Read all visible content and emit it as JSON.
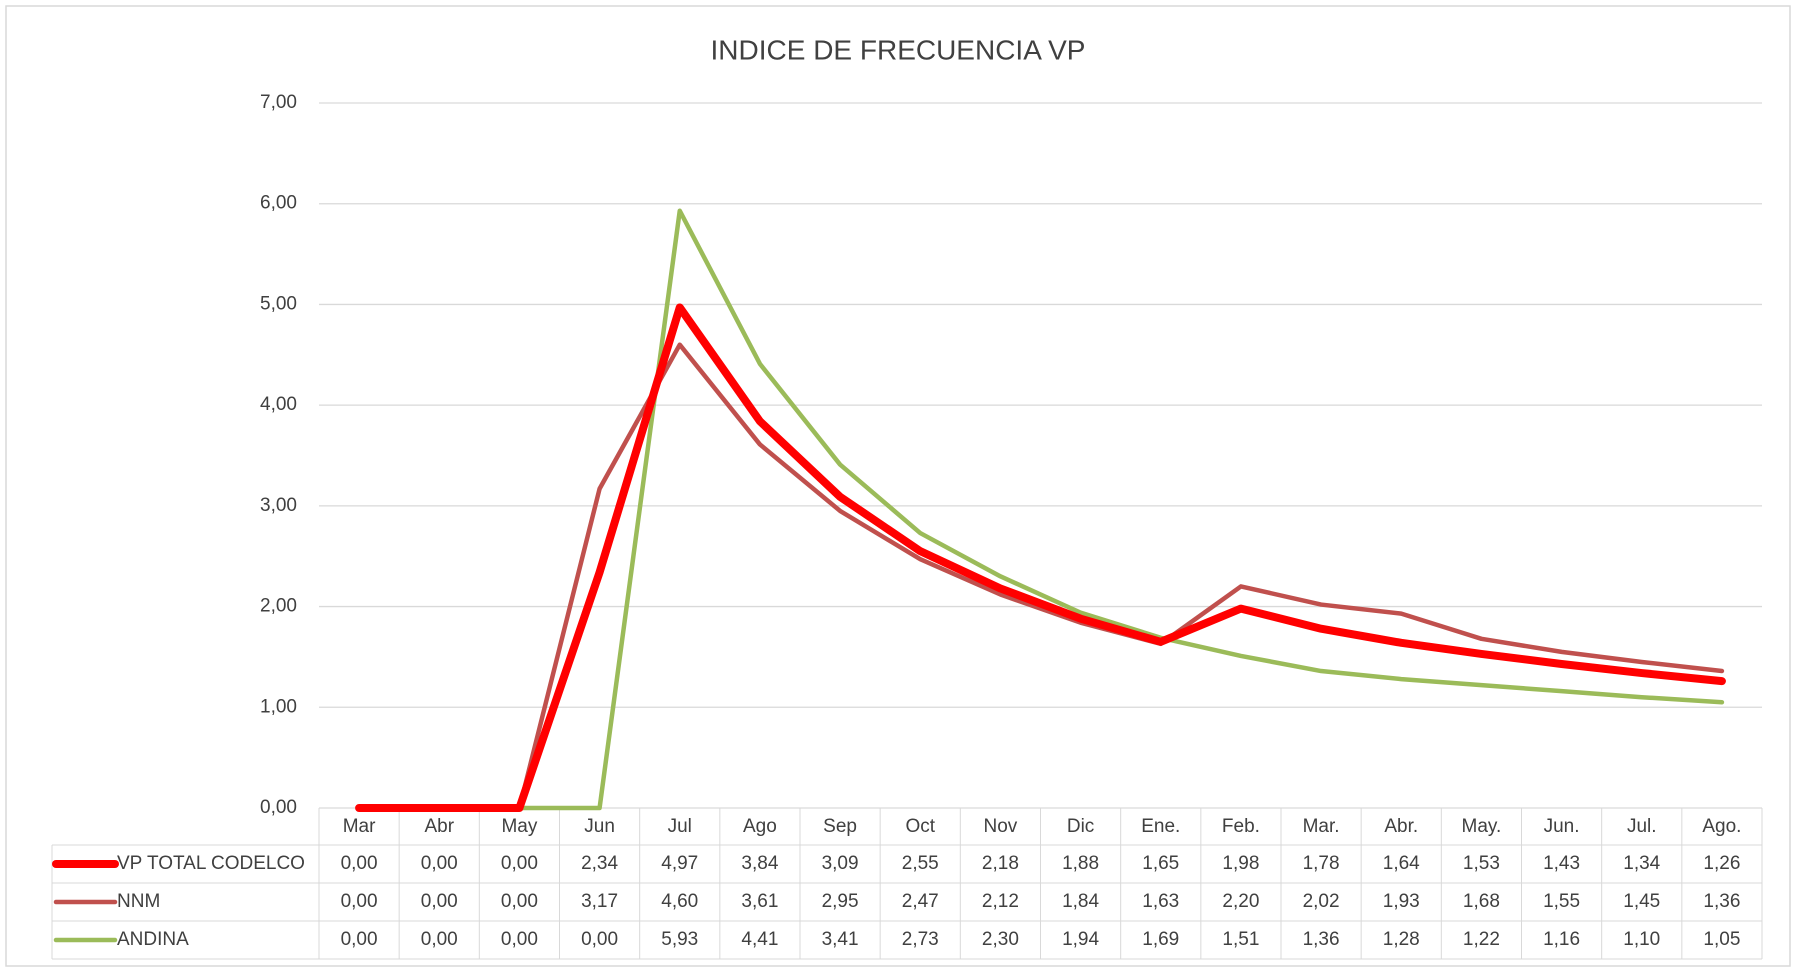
{
  "chart_data": {
    "type": "line",
    "title": "INDICE DE FRECUENCIA VP",
    "categories": [
      "Mar",
      "Abr",
      "May",
      "Jun",
      "Jul",
      "Ago",
      "Sep",
      "Oct",
      "Nov",
      "Dic",
      "Ene.",
      "Feb.",
      "Mar.",
      "Abr.",
      "May.",
      "Jun.",
      "Jul.",
      "Ago."
    ],
    "series": [
      {
        "name": "VP TOTAL CODELCO",
        "color": "#ff0000",
        "values": [
          0,
          0,
          0,
          2.34,
          4.97,
          3.84,
          3.09,
          2.55,
          2.18,
          1.88,
          1.65,
          1.98,
          1.78,
          1.64,
          1.53,
          1.43,
          1.34,
          1.26
        ],
        "value_labels": [
          "0,00",
          "0,00",
          "0,00",
          "2,34",
          "4,97",
          "3,84",
          "3,09",
          "2,55",
          "2,18",
          "1,88",
          "1,65",
          "1,98",
          "1,78",
          "1,64",
          "1,53",
          "1,43",
          "1,34",
          "1,26"
        ]
      },
      {
        "name": "NNM",
        "color": "#c0504d",
        "values": [
          0,
          0,
          0,
          3.17,
          4.6,
          3.61,
          2.95,
          2.47,
          2.12,
          1.84,
          1.63,
          2.2,
          2.02,
          1.93,
          1.68,
          1.55,
          1.45,
          1.36
        ],
        "value_labels": [
          "0,00",
          "0,00",
          "0,00",
          "3,17",
          "4,60",
          "3,61",
          "2,95",
          "2,47",
          "2,12",
          "1,84",
          "1,63",
          "2,20",
          "2,02",
          "1,93",
          "1,68",
          "1,55",
          "1,45",
          "1,36"
        ]
      },
      {
        "name": "ANDINA",
        "color": "#9bbb59",
        "values": [
          0,
          0,
          0,
          0,
          5.93,
          4.41,
          3.41,
          2.73,
          2.3,
          1.94,
          1.69,
          1.51,
          1.36,
          1.28,
          1.22,
          1.16,
          1.1,
          1.05
        ],
        "value_labels": [
          "0,00",
          "0,00",
          "0,00",
          "0,00",
          "5,93",
          "4,41",
          "3,41",
          "2,73",
          "2,30",
          "1,94",
          "1,69",
          "1,51",
          "1,36",
          "1,28",
          "1,22",
          "1,16",
          "1,10",
          "1,05"
        ]
      }
    ],
    "ylim": [
      0,
      7
    ],
    "yticks": [
      {
        "value": 0,
        "label": "0,00"
      },
      {
        "value": 1,
        "label": "1,00"
      },
      {
        "value": 2,
        "label": "2,00"
      },
      {
        "value": 3,
        "label": "3,00"
      },
      {
        "value": 4,
        "label": "4,00"
      },
      {
        "value": 5,
        "label": "5,00"
      },
      {
        "value": 6,
        "label": "6,00"
      },
      {
        "value": 7,
        "label": "7,00"
      }
    ],
    "grid": true
  }
}
